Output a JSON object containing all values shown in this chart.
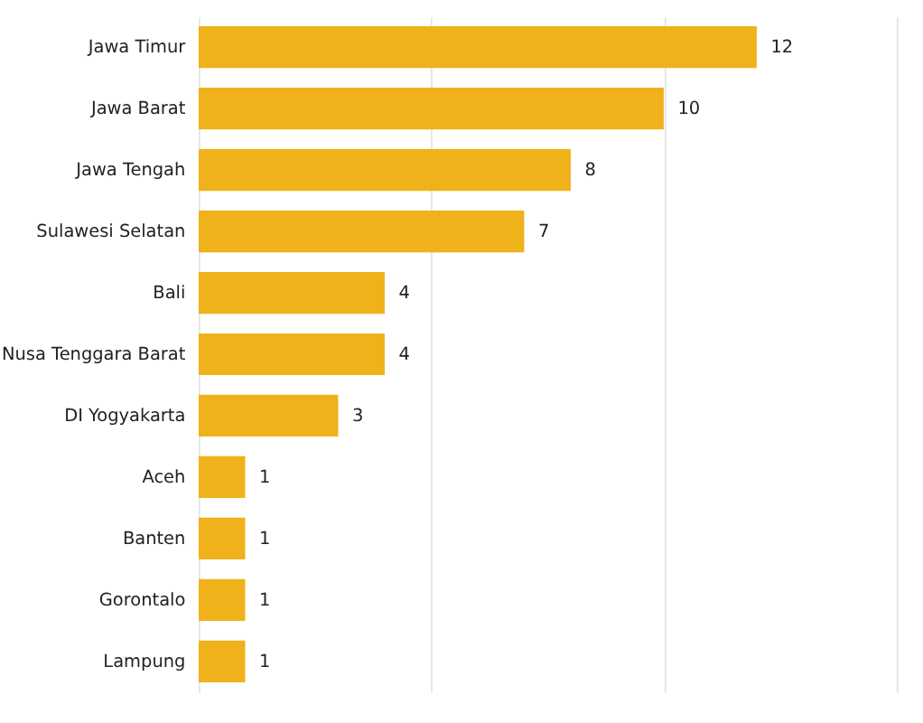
{
  "chart_data": {
    "type": "bar",
    "orientation": "horizontal",
    "categories": [
      "Jawa Timur",
      "Jawa Barat",
      "Jawa Tengah",
      "Sulawesi Selatan",
      "Bali",
      "Nusa Tenggara Barat",
      "DI Yogyakarta",
      "Aceh",
      "Banten",
      "Gorontalo",
      "Lampung"
    ],
    "values": [
      12,
      10,
      8,
      7,
      4,
      4,
      3,
      1,
      1,
      1,
      1
    ],
    "color": "#f0b21a",
    "xlim": [
      0,
      15.5
    ],
    "xticks": [
      {
        "value": 0,
        "label": null
      },
      {
        "value": 5,
        "label": null
      },
      {
        "value": 10,
        "label": null
      },
      {
        "value": 15,
        "label": null
      }
    ],
    "grid": "x",
    "tick_labels": "y",
    "data_labels": true
  }
}
